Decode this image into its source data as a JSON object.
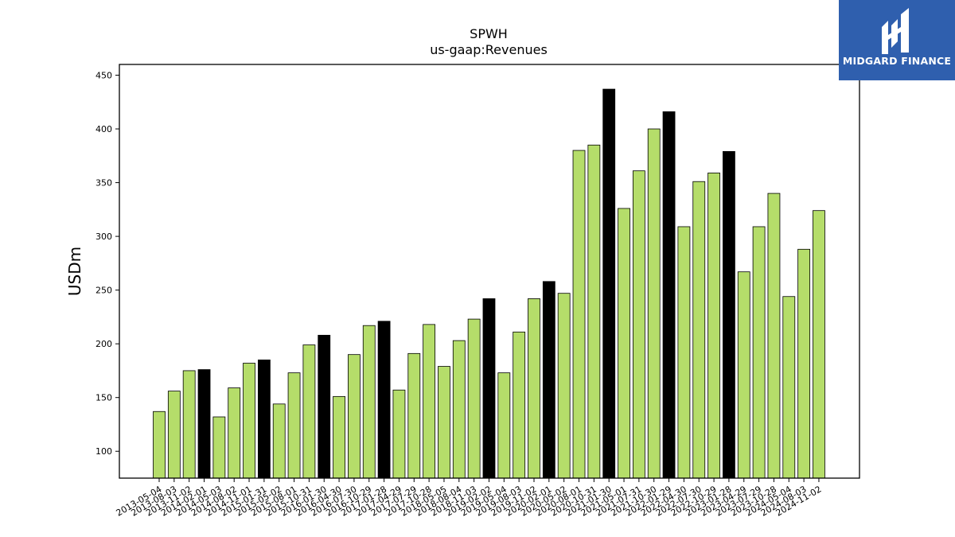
{
  "chart_data": {
    "type": "bar",
    "title": "SPWH",
    "subtitle": "us-gaap:Revenues",
    "ylabel": "USDm",
    "xlabel": "",
    "ylim": [
      75,
      460
    ],
    "yticks": [
      100,
      150,
      200,
      250,
      300,
      350,
      400,
      450
    ],
    "grid": false,
    "colors": {
      "quarter": "#b5dd6a",
      "annual": "#000000",
      "edge": "#000000"
    },
    "categories": [
      "2013-05-04",
      "2013-08-03",
      "2013-11-02",
      "2014-02-01",
      "2014-05-03",
      "2014-08-02",
      "2014-11-01",
      "2015-01-31",
      "2015-05-02",
      "2015-08-01",
      "2015-10-31",
      "2016-01-30",
      "2016-04-30",
      "2016-07-30",
      "2016-10-29",
      "2017-01-28",
      "2017-04-29",
      "2017-07-29",
      "2017-10-28",
      "2018-05-05",
      "2018-08-04",
      "2018-11-03",
      "2019-02-02",
      "2019-05-04",
      "2019-08-03",
      "2019-11-02",
      "2020-02-01",
      "2020-05-02",
      "2020-08-01",
      "2020-10-31",
      "2021-01-30",
      "2021-05-01",
      "2021-07-31",
      "2021-10-30",
      "2022-01-29",
      "2022-04-30",
      "2022-07-30",
      "2022-10-29",
      "2023-01-28",
      "2023-04-29",
      "2023-07-29",
      "2023-10-28",
      "2024-05-04",
      "2024-08-03",
      "2024-11-02"
    ],
    "values": [
      137,
      156,
      175,
      176,
      132,
      159,
      182,
      185,
      144,
      173,
      199,
      208,
      151,
      190,
      217,
      221,
      157,
      191,
      218,
      179,
      203,
      223,
      242,
      173,
      211,
      242,
      258,
      247,
      380,
      385,
      437,
      326,
      361,
      400,
      416,
      309,
      351,
      359,
      379,
      267,
      309,
      340,
      244,
      288,
      324
    ],
    "highlight": [
      false,
      false,
      false,
      true,
      false,
      false,
      false,
      true,
      false,
      false,
      false,
      true,
      false,
      false,
      false,
      true,
      false,
      false,
      false,
      false,
      false,
      false,
      true,
      false,
      false,
      false,
      true,
      false,
      false,
      false,
      true,
      false,
      false,
      false,
      true,
      false,
      false,
      false,
      true,
      false,
      false,
      false,
      false,
      false,
      false
    ]
  },
  "logo": {
    "text": "MIDGARD FINANCE",
    "color": "#2f5fae",
    "icon": "midgard-logo-icon"
  }
}
